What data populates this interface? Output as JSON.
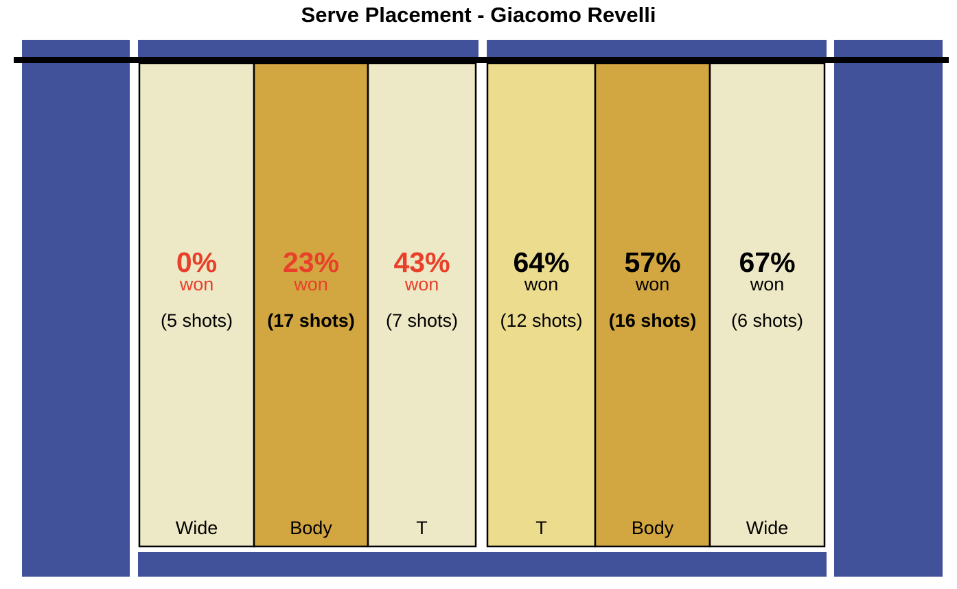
{
  "chart_data": {
    "type": "table",
    "title": "Serve Placement - Giacomo Revelli",
    "colors": {
      "court_blue": "#41519a",
      "zone_light": "#ede8c5",
      "zone_mid": "#ecdc8e",
      "zone_dark": "#d2a640",
      "low_win_text": "#e8402a",
      "high_win_text": "#000000"
    },
    "zones": [
      {
        "side": "left",
        "label": "Wide",
        "pct": "0%",
        "won": "won",
        "shots": "(5 shots)",
        "shots_count": 5,
        "win_rate": 0,
        "fill": "light",
        "low": true,
        "bold_shots": false
      },
      {
        "side": "left",
        "label": "Body",
        "pct": "23%",
        "won": "won",
        "shots": "(17 shots)",
        "shots_count": 17,
        "win_rate": 23,
        "fill": "dark",
        "low": true,
        "bold_shots": true
      },
      {
        "side": "left",
        "label": "T",
        "pct": "43%",
        "won": "won",
        "shots": "(7 shots)",
        "shots_count": 7,
        "win_rate": 43,
        "fill": "light",
        "low": true,
        "bold_shots": false
      },
      {
        "side": "right",
        "label": "T",
        "pct": "64%",
        "won": "won",
        "shots": "(12 shots)",
        "shots_count": 12,
        "win_rate": 64,
        "fill": "mid",
        "low": false,
        "bold_shots": false
      },
      {
        "side": "right",
        "label": "Body",
        "pct": "57%",
        "won": "won",
        "shots": "(16 shots)",
        "shots_count": 16,
        "win_rate": 57,
        "fill": "dark",
        "low": false,
        "bold_shots": true
      },
      {
        "side": "right",
        "label": "Wide",
        "pct": "67%",
        "won": "won",
        "shots": "(6 shots)",
        "shots_count": 6,
        "win_rate": 67,
        "fill": "light",
        "low": false,
        "bold_shots": false
      }
    ]
  }
}
